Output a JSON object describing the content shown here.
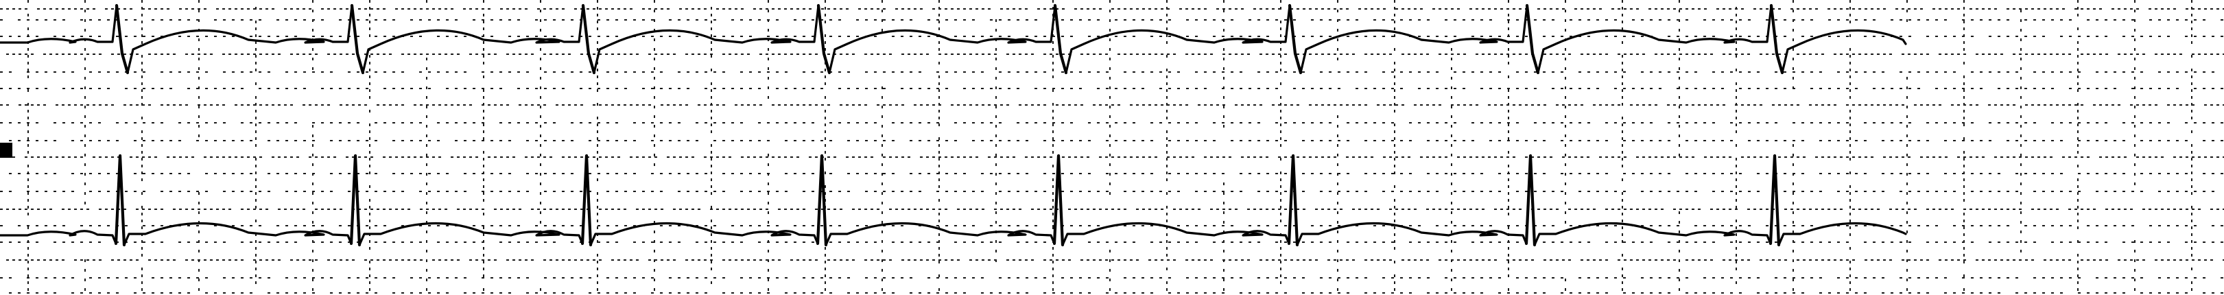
{
  "strip": {
    "background": "#ffffff",
    "ink_color": "#000000",
    "grid_color": "#1a1a1a",
    "grid_style": "dotted"
  },
  "leads": [
    {
      "id": "lead-top",
      "beat_count": 8,
      "qrs_polarity": "biphasic-negative"
    },
    {
      "id": "lead-bottom",
      "beat_count": 8,
      "qrs_polarity": "positive",
      "has_marker": true
    }
  ]
}
